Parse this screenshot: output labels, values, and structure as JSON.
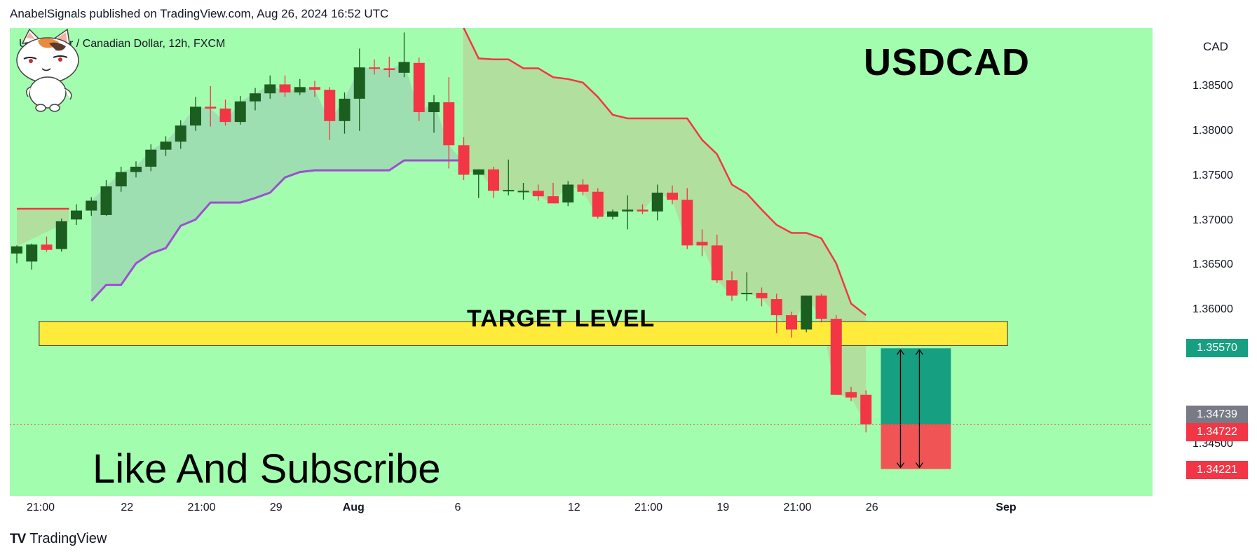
{
  "header": {
    "publish_line": "AnabelSignals published on TradingView.com, Aug 26, 2024 16:52 UTC"
  },
  "chart_header": {
    "symbol_description": "U.S. Dollar / Canadian Dollar, 12h, FXCM",
    "currency_button": "CAD",
    "title_overlay": "USDCAD"
  },
  "annotations": {
    "target_label": "TARGET LEVEL",
    "promo_text": "Like And Subscribe"
  },
  "footer": {
    "brand": "TradingView",
    "brand_mark": "TV"
  },
  "colors": {
    "background": "#a3fdaf",
    "bull": "#1b5e20",
    "bear": "#f23645",
    "supertrend_up": "#9c4fd0",
    "supertrend_down": "#f23645",
    "target_zone": "#ffeb3b",
    "profit_zone": "#169f80",
    "loss_zone": "#f05454"
  },
  "chart_data": {
    "type": "candlestick",
    "symbol": "USDCAD",
    "interval": "12h",
    "y_ticks": [
      "1.38500",
      "1.38000",
      "1.37500",
      "1.37000",
      "1.36500",
      "1.36000",
      "1.34500"
    ],
    "ylim": [
      1.3392,
      1.3915
    ],
    "x_ticks": [
      "21:00",
      "22",
      "21:00",
      "29",
      "Aug",
      "6",
      "12",
      "21:00",
      "19",
      "21:00",
      "26",
      "Sep"
    ],
    "price_labels": {
      "target_price": "1.35570",
      "prev_close": "1.34739",
      "last_price": "1.34722",
      "stop_price": "1.34221"
    },
    "candles": [
      [
        1.3663,
        1.3672,
        1.3652,
        1.3671
      ],
      [
        1.3654,
        1.3674,
        1.3645,
        1.3673
      ],
      [
        1.3673,
        1.3682,
        1.3665,
        1.3667
      ],
      [
        1.3668,
        1.3702,
        1.3665,
        1.3699
      ],
      [
        1.3701,
        1.3718,
        1.3695,
        1.3711
      ],
      [
        1.3711,
        1.3726,
        1.3705,
        1.3722
      ],
      [
        1.3706,
        1.3745,
        1.3705,
        1.3738
      ],
      [
        1.3738,
        1.376,
        1.3732,
        1.3754
      ],
      [
        1.3754,
        1.3766,
        1.3748,
        1.376
      ],
      [
        1.376,
        1.3785,
        1.3755,
        1.3779
      ],
      [
        1.3779,
        1.3794,
        1.3772,
        1.3788
      ],
      [
        1.3788,
        1.3812,
        1.378,
        1.3806
      ],
      [
        1.3806,
        1.3838,
        1.38,
        1.3827
      ],
      [
        1.3827,
        1.385,
        1.3805,
        1.3825
      ],
      [
        1.3825,
        1.3835,
        1.3806,
        1.381
      ],
      [
        1.381,
        1.3839,
        1.3807,
        1.3833
      ],
      [
        1.3833,
        1.3848,
        1.3823,
        1.3842
      ],
      [
        1.3842,
        1.3862,
        1.3836,
        1.3852
      ],
      [
        1.3852,
        1.3862,
        1.3838,
        1.3843
      ],
      [
        1.3843,
        1.3858,
        1.384,
        1.3849
      ],
      [
        1.3849,
        1.3856,
        1.3838,
        1.3846
      ],
      [
        1.3846,
        1.3849,
        1.379,
        1.3811
      ],
      [
        1.3811,
        1.3843,
        1.3797,
        1.3836
      ],
      [
        1.3836,
        1.3892,
        1.38,
        1.3871
      ],
      [
        1.3871,
        1.388,
        1.3863,
        1.387
      ],
      [
        1.387,
        1.3883,
        1.386,
        1.3868
      ],
      [
        1.3865,
        1.391,
        1.386,
        1.3877
      ],
      [
        1.3876,
        1.3882,
        1.3811,
        1.3821
      ],
      [
        1.3821,
        1.384,
        1.3798,
        1.3832
      ],
      [
        1.3832,
        1.386,
        1.3758,
        1.3784
      ],
      [
        1.3784,
        1.3793,
        1.3745,
        1.3751
      ],
      [
        1.3751,
        1.3757,
        1.3725,
        1.3757
      ],
      [
        1.3757,
        1.376,
        1.3725,
        1.3733
      ],
      [
        1.3733,
        1.3768,
        1.3728,
        1.3734
      ],
      [
        1.3733,
        1.3742,
        1.3723,
        1.3733
      ],
      [
        1.3733,
        1.374,
        1.3722,
        1.3727
      ],
      [
        1.3727,
        1.3742,
        1.372,
        1.3719
      ],
      [
        1.372,
        1.3744,
        1.3716,
        1.374
      ],
      [
        1.374,
        1.3746,
        1.3728,
        1.3732
      ],
      [
        1.3732,
        1.3736,
        1.3702,
        1.3704
      ],
      [
        1.3704,
        1.3712,
        1.3701,
        1.371
      ],
      [
        1.371,
        1.3728,
        1.369,
        1.3712
      ],
      [
        1.3712,
        1.3718,
        1.3707,
        1.371
      ],
      [
        1.371,
        1.374,
        1.37,
        1.3731
      ],
      [
        1.3731,
        1.3739,
        1.3718,
        1.3723
      ],
      [
        1.3723,
        1.3736,
        1.3668,
        1.3672
      ],
      [
        1.3676,
        1.369,
        1.366,
        1.3672
      ],
      [
        1.3672,
        1.3684,
        1.363,
        1.3633
      ],
      [
        1.3633,
        1.3643,
        1.361,
        1.3616
      ],
      [
        1.3618,
        1.3642,
        1.361,
        1.3619
      ],
      [
        1.3619,
        1.3625,
        1.3604,
        1.3613
      ],
      [
        1.3612,
        1.3618,
        1.3574,
        1.3594
      ],
      [
        1.3594,
        1.3598,
        1.3569,
        1.3578
      ],
      [
        1.3578,
        1.3616,
        1.3575,
        1.3616
      ],
      [
        1.3616,
        1.3618,
        1.3586,
        1.359
      ],
      [
        1.359,
        1.3594,
        1.3505,
        1.3505
      ],
      [
        1.3508,
        1.3514,
        1.3498,
        1.3502
      ],
      [
        1.3505,
        1.351,
        1.3463,
        1.3472
      ]
    ],
    "supertrend": {
      "uptrend": [
        [
          5,
          1.361
        ],
        [
          6,
          1.3628
        ],
        [
          7,
          1.3628
        ],
        [
          8,
          1.3652
        ],
        [
          9,
          1.3663
        ],
        [
          10,
          1.3669
        ],
        [
          11,
          1.3694
        ],
        [
          12,
          1.3701
        ],
        [
          13,
          1.372
        ],
        [
          14,
          1.372
        ],
        [
          15,
          1.372
        ],
        [
          16,
          1.3725
        ],
        [
          17,
          1.3731
        ],
        [
          18,
          1.3748
        ],
        [
          19,
          1.3754
        ],
        [
          20,
          1.3756
        ],
        [
          21,
          1.3756
        ],
        [
          22,
          1.3756
        ],
        [
          23,
          1.3756
        ],
        [
          24,
          1.3756
        ],
        [
          25,
          1.3756
        ],
        [
          26,
          1.3767
        ],
        [
          27,
          1.3767
        ],
        [
          28,
          1.3767
        ],
        [
          29,
          1.3767
        ],
        [
          29.9,
          1.3767
        ]
      ],
      "downtrend": [
        [
          29.95,
          1.3915
        ],
        [
          30.0,
          1.3915
        ],
        [
          31,
          1.3881
        ],
        [
          32,
          1.388
        ],
        [
          33,
          1.388
        ],
        [
          34,
          1.387
        ],
        [
          35,
          1.387
        ],
        [
          36,
          1.386
        ],
        [
          37,
          1.3858
        ],
        [
          38,
          1.3854
        ],
        [
          39,
          1.3838
        ],
        [
          40,
          1.3818
        ],
        [
          41,
          1.3814
        ],
        [
          42,
          1.3814
        ],
        [
          43,
          1.3814
        ],
        [
          44,
          1.3814
        ],
        [
          45,
          1.3814
        ],
        [
          46,
          1.379
        ],
        [
          47,
          1.3774
        ],
        [
          48,
          1.374
        ],
        [
          49,
          1.373
        ],
        [
          50,
          1.3712
        ],
        [
          51,
          1.3695
        ],
        [
          52,
          1.3686
        ],
        [
          53,
          1.3686
        ],
        [
          54,
          1.368
        ],
        [
          55,
          1.3652
        ],
        [
          56,
          1.3607
        ],
        [
          57,
          1.3594
        ]
      ],
      "early": [
        [
          0,
          1.3713
        ],
        [
          3.5,
          1.3713
        ]
      ]
    },
    "target_zone": {
      "from_index": 1.5,
      "to_index": 66.5,
      "top": 1.3587,
      "bottom": 1.356
    },
    "position": {
      "from_index": 58.0,
      "to_index": 62.7,
      "entry": 1.34722,
      "take_profit": 1.3557,
      "stop_loss": 1.34221
    }
  }
}
